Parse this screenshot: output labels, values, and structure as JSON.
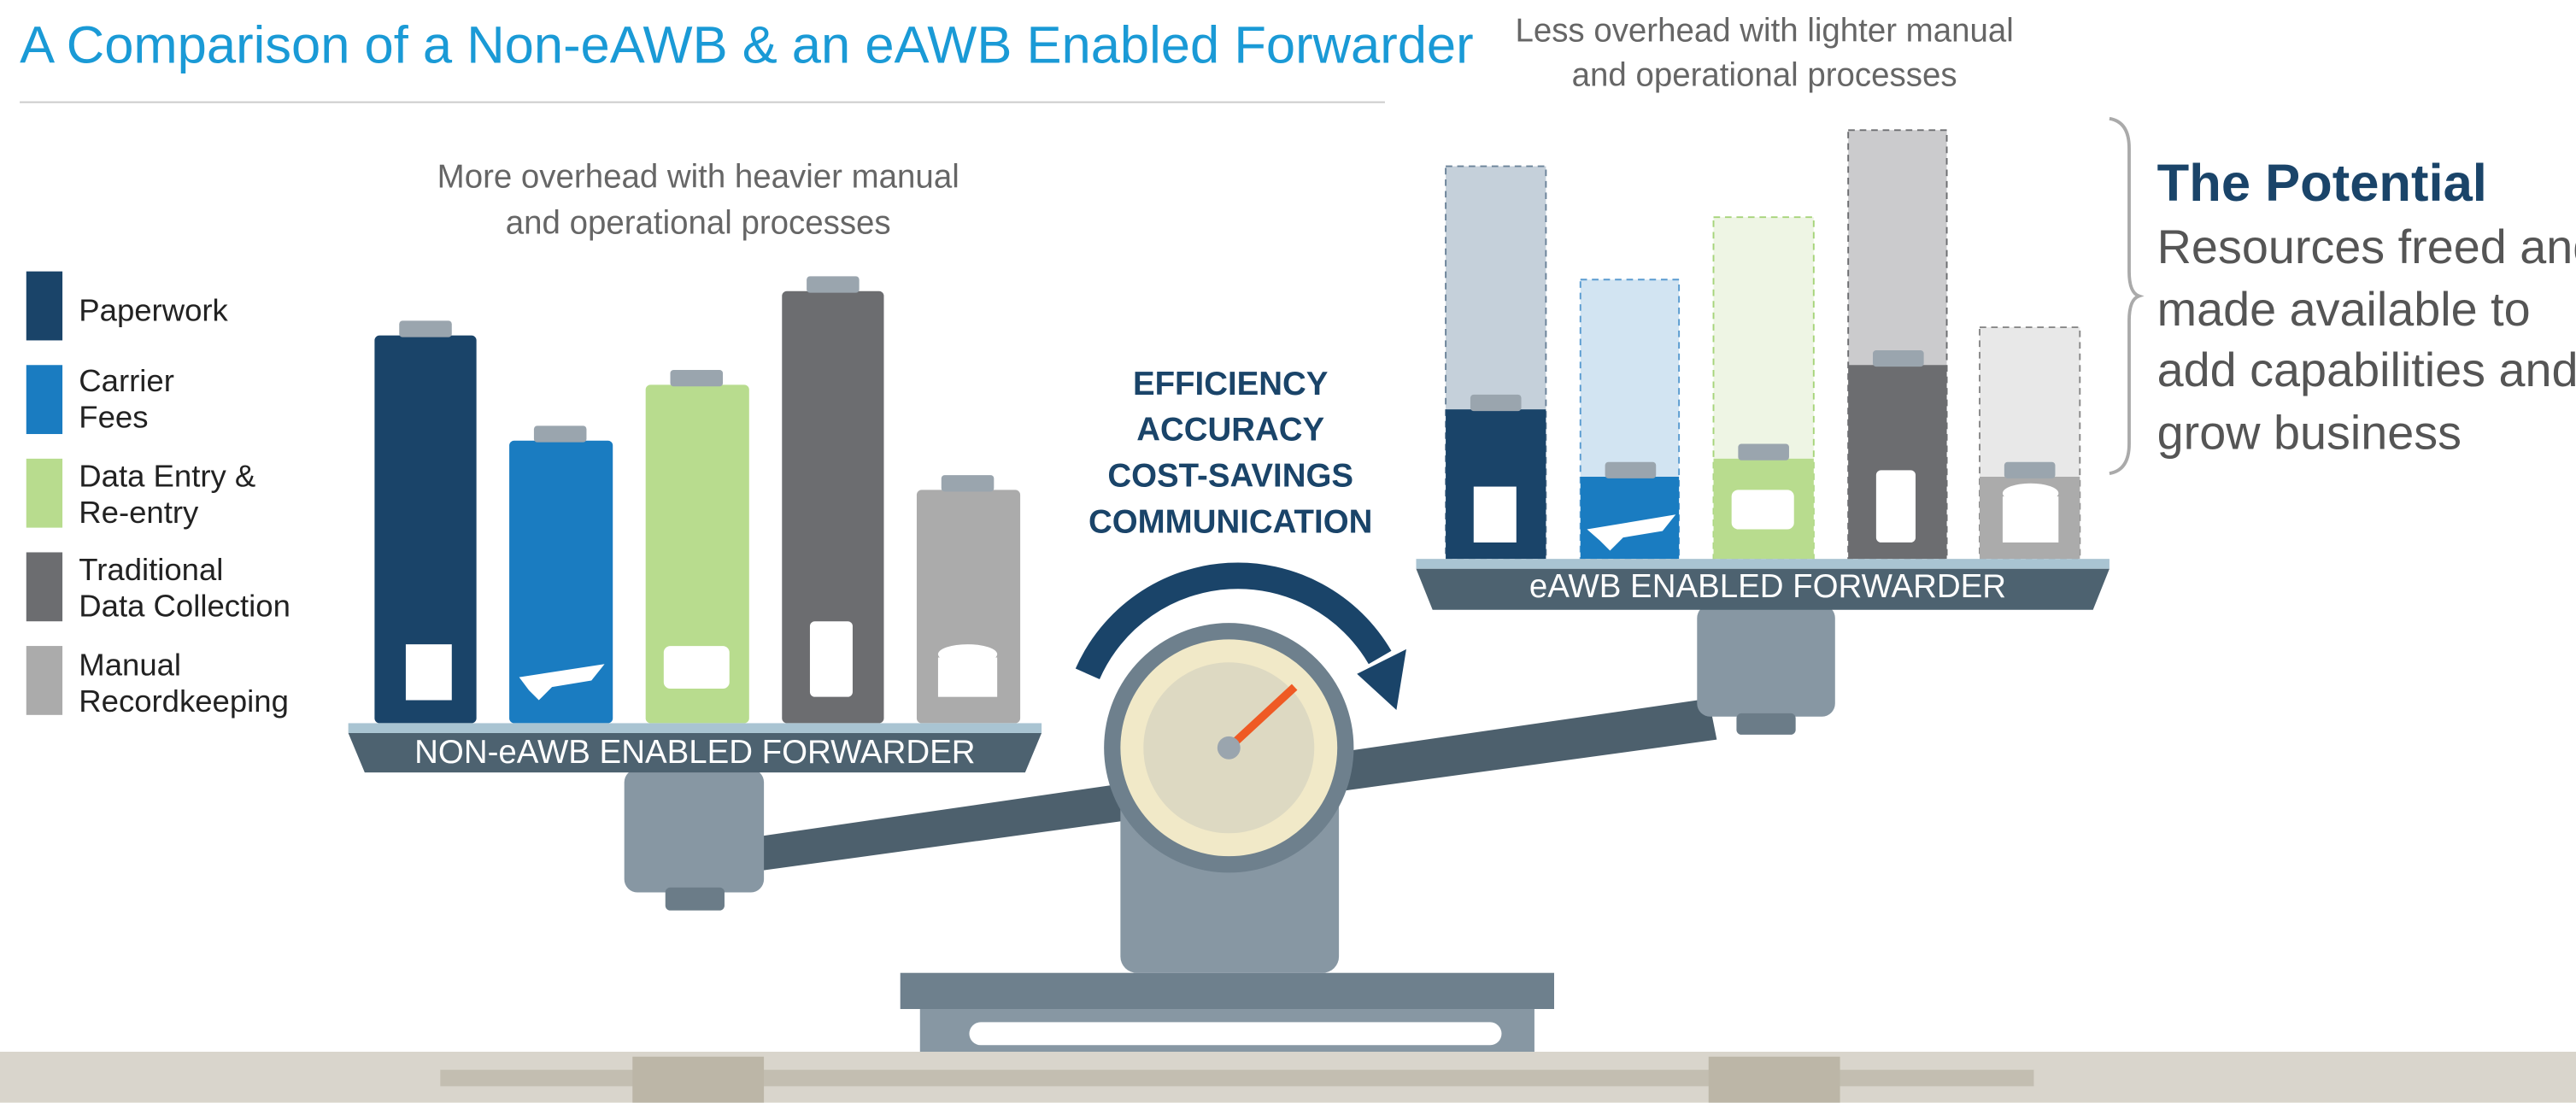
{
  "title": "A Comparison of a Non-eAWB & an eAWB Enabled Forwarder",
  "legend": [
    [
      "Paperwork"
    ],
    [
      "Carrier",
      "Fees"
    ],
    [
      "Data Entry &",
      "Re-entry"
    ],
    [
      "Traditional",
      "Data Collection"
    ],
    [
      "Manual",
      "Recordkeeping"
    ]
  ],
  "left": {
    "caption": [
      "More overhead with heavier manual",
      "and operational processes"
    ],
    "platform": "NON-eAWB ENABLED FORWARDER"
  },
  "center": [
    "EFFICIENCY",
    "ACCURACY",
    "COST-SAVINGS",
    "COMMUNICATION"
  ],
  "right": {
    "caption": [
      "Less overhead with lighter manual",
      "and operational processes"
    ],
    "platform": "eAWB ENABLED FORWARDER"
  },
  "potential": {
    "heading": "The Potential",
    "lines": [
      "Resources freed and",
      "made available to",
      "add capabilities and",
      "grow business"
    ]
  }
}
